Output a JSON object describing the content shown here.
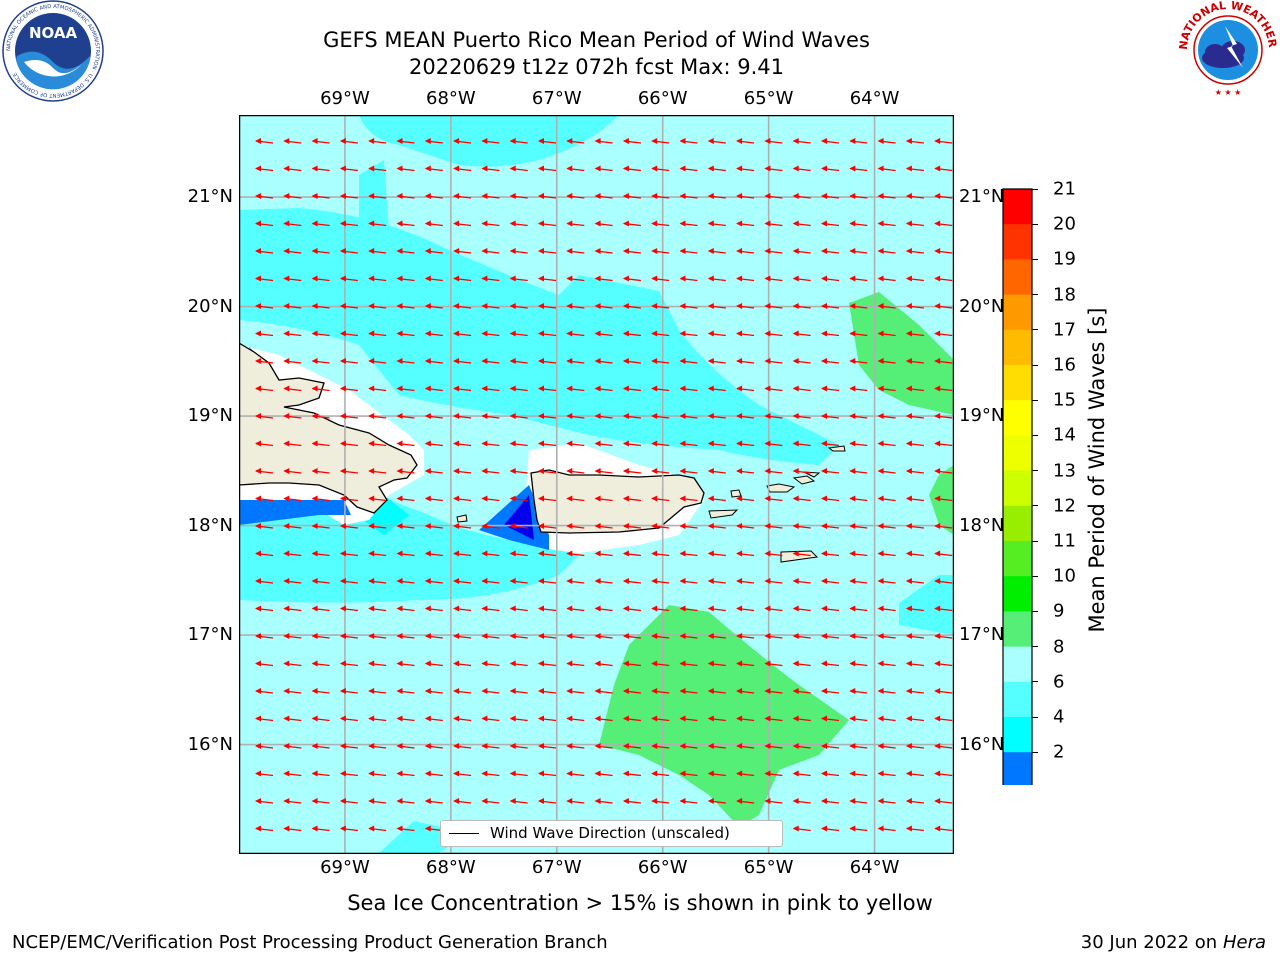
{
  "title": {
    "line1": "GEFS MEAN Puerto Rico Mean Period of Wind Waves",
    "line2": "20220629 t12z 072h fcst   Max: 9.41"
  },
  "logos": {
    "left": {
      "icon": "noaa-logo",
      "text": "NOAA",
      "ring_text": "NATIONAL OCEANIC AND ATMOSPHERIC ADMINISTRATION · U.S. DEPARTMENT OF COMMERCE"
    },
    "right": {
      "icon": "nws-logo",
      "ring_text": "NATIONAL WEATHER SERVICE"
    }
  },
  "map": {
    "lon_ticks": [
      "69°W",
      "68°W",
      "67°W",
      "66°W",
      "65°W",
      "64°W"
    ],
    "lat_ticks": [
      "21°N",
      "20°N",
      "19°N",
      "18°N",
      "17°N",
      "16°N"
    ],
    "extent": {
      "lon": [
        -70.0,
        -63.25
      ],
      "lat": [
        15.0,
        21.75
      ]
    },
    "background_color": "#aaffff",
    "land_color": "#efeedd",
    "arrow_color": "#ff0000",
    "arrow_direction": "toward west (easterly trades)"
  },
  "legend": {
    "label": "Wind Wave Direction (unscaled)"
  },
  "colorbar": {
    "label": "Mean Period of Wind Waves [s]",
    "ticks": [
      "21",
      "20",
      "19",
      "18",
      "17",
      "16",
      "15",
      "14",
      "13",
      "12",
      "11",
      "10",
      "9",
      "8",
      "6",
      "4",
      "2"
    ],
    "colors": [
      "#ff0000",
      "#ff3300",
      "#ff6600",
      "#ff9900",
      "#ffbb00",
      "#ffdd00",
      "#ffff00",
      "#eeff00",
      "#ccff00",
      "#99ee00",
      "#55ee22",
      "#00ee00",
      "#55ee77",
      "#aaffff",
      "#55ffff",
      "#00ffff",
      "#0077ff",
      "#0000ee"
    ]
  },
  "footnote": "Sea Ice Concentration > 15% is shown in pink to yellow",
  "credit": "NCEP/EMC/Verification Post Processing Product Generation Branch",
  "date": {
    "text": "30 Jun 2022 on",
    "machine": "Hera"
  }
}
